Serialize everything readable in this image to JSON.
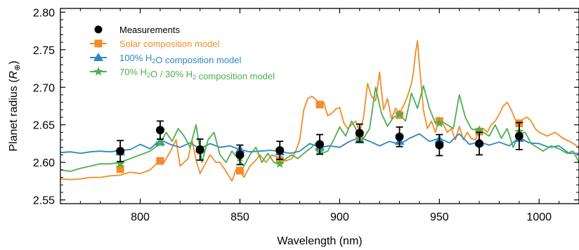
{
  "chart_data": {
    "type": "line",
    "xlabel": "Wavelength (nm)",
    "ylabel_parts": [
      "Planet radius (",
      "R",
      "⊕",
      ")"
    ],
    "xlim": [
      760,
      1020
    ],
    "ylim": [
      2.545,
      2.805
    ],
    "x_ticks": [
      800,
      850,
      900,
      950,
      1000
    ],
    "y_ticks": [
      2.55,
      2.6,
      2.65,
      2.7,
      2.75,
      2.8
    ],
    "y_tick_labels": [
      "2.55",
      "2.60",
      "2.65",
      "2.70",
      "2.75",
      "2.80"
    ],
    "x_tick_labels": [
      "800",
      "850",
      "900",
      "950",
      "1000"
    ],
    "grid": false,
    "legend_position": "top-left",
    "legend": [
      {
        "key": "measurements",
        "label_parts": [
          {
            "t": "Measurements"
          }
        ],
        "color": "#000000",
        "marker": "circle"
      },
      {
        "key": "solar",
        "label_parts": [
          {
            "t": "Solar composition model"
          }
        ],
        "color": "#f28c28",
        "marker": "square"
      },
      {
        "key": "h2o",
        "label_parts": [
          {
            "t": "100% H"
          },
          {
            "t": "2",
            "sub": true
          },
          {
            "t": "O composition model"
          }
        ],
        "color": "#2e86c1",
        "marker": "triangle"
      },
      {
        "key": "mix",
        "label_parts": [
          {
            "t": "70% H"
          },
          {
            "t": "2",
            "sub": true
          },
          {
            "t": "O / 30% H"
          },
          {
            "t": "2",
            "sub": true
          },
          {
            "t": " composition model"
          }
        ],
        "color": "#4caf50",
        "marker": "star"
      }
    ],
    "measurements": {
      "x": [
        790,
        810,
        830,
        850,
        870,
        890,
        910,
        930,
        950,
        970,
        990
      ],
      "y": [
        2.615,
        2.643,
        2.617,
        2.61,
        2.616,
        2.624,
        2.639,
        2.634,
        2.623,
        2.625,
        2.635
      ],
      "err": [
        0.014,
        0.012,
        0.014,
        0.013,
        0.012,
        0.013,
        0.012,
        0.013,
        0.014,
        0.015,
        0.018
      ]
    },
    "binned_models": {
      "solar": {
        "x": [
          790,
          810,
          830,
          850,
          870,
          890,
          910,
          930,
          950,
          970,
          990
        ],
        "y": [
          2.591,
          2.602,
          2.617,
          2.589,
          2.603,
          2.677,
          2.634,
          2.663,
          2.655,
          2.641,
          2.652
        ]
      },
      "h2o": {
        "x": [
          790,
          810,
          830,
          850,
          870,
          890,
          910,
          930,
          950,
          970,
          990
        ],
        "y": [
          2.614,
          2.627,
          2.618,
          2.617,
          2.614,
          2.621,
          2.63,
          2.628,
          2.63,
          2.627,
          2.632
        ]
      },
      "mix": {
        "x": [
          790,
          810,
          830,
          850,
          870,
          890,
          910,
          930,
          950,
          970,
          990
        ],
        "y": [
          2.598,
          2.626,
          2.615,
          2.606,
          2.598,
          2.614,
          2.631,
          2.664,
          2.652,
          2.643,
          2.641
        ]
      }
    },
    "series": [
      {
        "key": "solar",
        "color": "#f28c28",
        "x": [
          760,
          765,
          770,
          775,
          780,
          785,
          790,
          795,
          800,
          805,
          810,
          812,
          815,
          818,
          820,
          822,
          824,
          826,
          828,
          830,
          832,
          835,
          838,
          840,
          843,
          846,
          848,
          850,
          852,
          855,
          858,
          860,
          863,
          866,
          870,
          873,
          876,
          878,
          880,
          882,
          884,
          886,
          888,
          890,
          892,
          894,
          896,
          898,
          900,
          902,
          904,
          906,
          908,
          910,
          912,
          914,
          916,
          918,
          920,
          922,
          924,
          926,
          928,
          930,
          932,
          934,
          936,
          937,
          938,
          939,
          940,
          941,
          942,
          944,
          946,
          948,
          950,
          952,
          954,
          956,
          958,
          960,
          962,
          964,
          966,
          968,
          970,
          972,
          974,
          976,
          978,
          980,
          982,
          984,
          986,
          988,
          990,
          992,
          994,
          996,
          998,
          1000,
          1004,
          1008,
          1012,
          1016,
          1020
        ],
        "y": [
          2.578,
          2.577,
          2.578,
          2.58,
          2.58,
          2.582,
          2.583,
          2.587,
          2.585,
          2.59,
          2.603,
          2.6,
          2.614,
          2.63,
          2.595,
          2.6,
          2.605,
          2.63,
          2.603,
          2.585,
          2.595,
          2.61,
          2.6,
          2.6,
          2.588,
          2.575,
          2.59,
          2.59,
          2.58,
          2.595,
          2.603,
          2.61,
          2.6,
          2.61,
          2.605,
          2.602,
          2.605,
          2.615,
          2.63,
          2.67,
          2.685,
          2.688,
          2.684,
          2.678,
          2.68,
          2.662,
          2.665,
          2.671,
          2.673,
          2.653,
          2.645,
          2.65,
          2.655,
          2.64,
          2.66,
          2.705,
          2.688,
          2.682,
          2.72,
          2.67,
          2.685,
          2.658,
          2.672,
          2.666,
          2.675,
          2.688,
          2.705,
          2.72,
          2.745,
          2.762,
          2.73,
          2.7,
          2.67,
          2.645,
          2.655,
          2.64,
          2.66,
          2.65,
          2.64,
          2.645,
          2.63,
          2.648,
          2.63,
          2.64,
          2.632,
          2.63,
          2.64,
          2.645,
          2.64,
          2.65,
          2.655,
          2.664,
          2.675,
          2.68,
          2.67,
          2.657,
          2.65,
          2.658,
          2.66,
          2.655,
          2.645,
          2.64,
          2.635,
          2.64,
          2.632,
          2.627,
          2.62
        ]
      },
      {
        "key": "h2o",
        "color": "#2e86c1",
        "x": [
          760,
          765,
          770,
          775,
          780,
          785,
          790,
          795,
          800,
          805,
          810,
          815,
          820,
          825,
          830,
          835,
          840,
          845,
          850,
          855,
          860,
          865,
          870,
          875,
          880,
          885,
          890,
          895,
          900,
          905,
          910,
          915,
          920,
          925,
          930,
          935,
          940,
          945,
          950,
          955,
          960,
          965,
          970,
          975,
          980,
          985,
          990,
          995,
          1000,
          1005,
          1010,
          1015,
          1020
        ],
        "y": [
          2.613,
          2.614,
          2.612,
          2.614,
          2.615,
          2.614,
          2.616,
          2.617,
          2.624,
          2.618,
          2.63,
          2.624,
          2.62,
          2.626,
          2.618,
          2.625,
          2.62,
          2.622,
          2.617,
          2.614,
          2.615,
          2.616,
          2.615,
          2.612,
          2.615,
          2.625,
          2.62,
          2.622,
          2.62,
          2.628,
          2.633,
          2.628,
          2.622,
          2.628,
          2.624,
          2.632,
          2.638,
          2.628,
          2.632,
          2.626,
          2.638,
          2.624,
          2.627,
          2.623,
          2.627,
          2.622,
          2.633,
          2.626,
          2.625,
          2.62,
          2.622,
          2.612,
          2.612
        ]
      },
      {
        "key": "mix",
        "color": "#4caf50",
        "x": [
          760,
          765,
          770,
          775,
          780,
          785,
          790,
          795,
          800,
          805,
          810,
          813,
          816,
          819,
          822,
          825,
          828,
          831,
          834,
          837,
          840,
          843,
          846,
          849,
          852,
          855,
          858,
          861,
          864,
          867,
          870,
          873,
          876,
          879,
          882,
          885,
          888,
          891,
          894,
          897,
          900,
          903,
          906,
          909,
          912,
          915,
          918,
          921,
          924,
          927,
          930,
          933,
          936,
          939,
          942,
          945,
          948,
          951,
          954,
          957,
          960,
          963,
          966,
          969,
          972,
          975,
          978,
          981,
          984,
          987,
          990,
          993,
          996,
          999,
          1002,
          1006,
          1010,
          1014,
          1017,
          1020
        ],
        "y": [
          2.59,
          2.588,
          2.592,
          2.595,
          2.598,
          2.598,
          2.6,
          2.605,
          2.61,
          2.615,
          2.625,
          2.64,
          2.628,
          2.645,
          2.635,
          2.62,
          2.65,
          2.6,
          2.63,
          2.64,
          2.61,
          2.6,
          2.615,
          2.605,
          2.595,
          2.61,
          2.62,
          2.6,
          2.612,
          2.6,
          2.597,
          2.605,
          2.61,
          2.605,
          2.612,
          2.618,
          2.625,
          2.612,
          2.615,
          2.63,
          2.647,
          2.635,
          2.655,
          2.64,
          2.632,
          2.645,
          2.7,
          2.665,
          2.648,
          2.66,
          2.664,
          2.655,
          2.692,
          2.672,
          2.702,
          2.672,
          2.652,
          2.655,
          2.65,
          2.645,
          2.69,
          2.66,
          2.645,
          2.642,
          2.64,
          2.635,
          2.65,
          2.632,
          2.645,
          2.62,
          2.638,
          2.64,
          2.625,
          2.62,
          2.615,
          2.622,
          2.618,
          2.612,
          2.615,
          2.6
        ]
      }
    ]
  }
}
